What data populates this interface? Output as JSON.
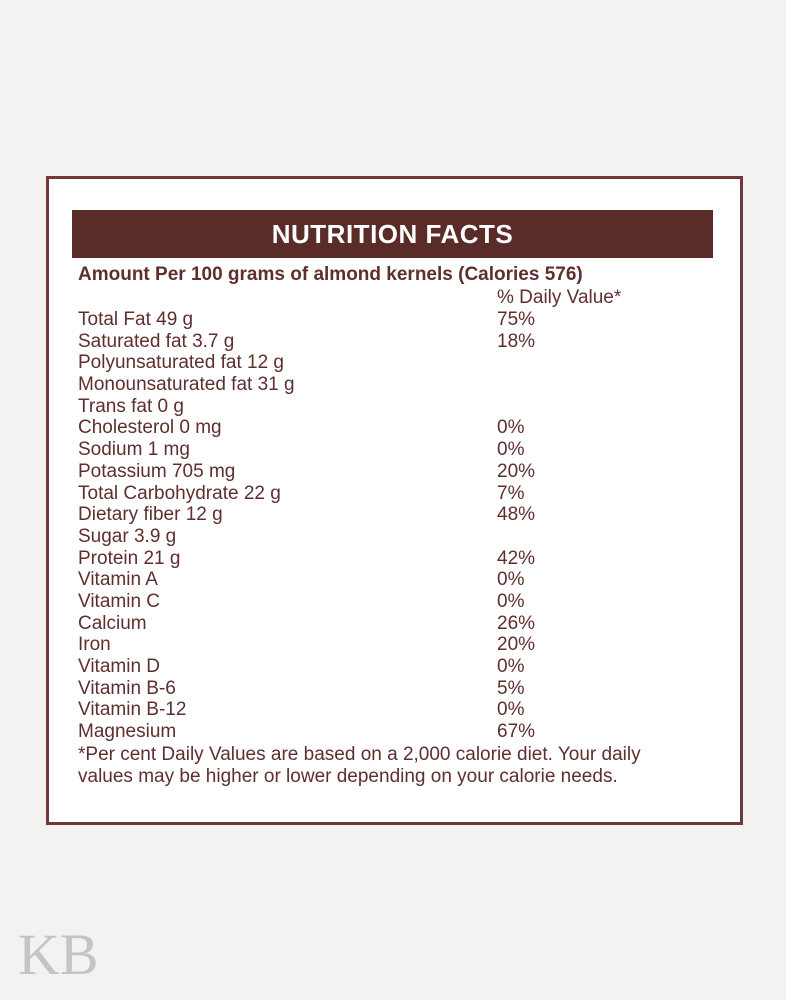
{
  "page": {
    "background_color": "#f3f2f1",
    "watermark_text": "KB"
  },
  "label": {
    "colors": {
      "bar_background": "#592c2a",
      "text": "#5e2f2e",
      "border": "#6e3a39",
      "title_text": "#ffffff"
    },
    "title": "NUTRITION FACTS",
    "amount_line": "Amount Per 100 grams of almond kernels (Calories 576)",
    "daily_value_header": "% Daily Value*",
    "rows": [
      {
        "label": "Total Fat 49 g",
        "dv": "75%"
      },
      {
        "label": "Saturated fat 3.7 g",
        "dv": "18%"
      },
      {
        "label": "Polyunsaturated fat 12 g",
        "dv": ""
      },
      {
        "label": "Monounsaturated fat 31 g",
        "dv": ""
      },
      {
        "label": "Trans fat 0 g",
        "dv": ""
      },
      {
        "label": "Cholesterol 0 mg",
        "dv": "0%"
      },
      {
        "label": "Sodium 1 mg",
        "dv": "0%"
      },
      {
        "label": "Potassium 705 mg",
        "dv": "20%"
      },
      {
        "label": "Total Carbohydrate 22 g",
        "dv": "7%"
      },
      {
        "label": "Dietary fiber 12 g",
        "dv": "48%"
      },
      {
        "label": "Sugar 3.9 g",
        "dv": ""
      },
      {
        "label": "Protein 21 g",
        "dv": "42%"
      },
      {
        "label": "Vitamin A",
        "dv": "0%"
      },
      {
        "label": "Vitamin C",
        "dv": "0%"
      },
      {
        "label": "Calcium",
        "dv": "26%"
      },
      {
        "label": "Iron",
        "dv": "20%"
      },
      {
        "label": "Vitamin D",
        "dv": "0%"
      },
      {
        "label": "Vitamin B-6",
        "dv": "5%"
      },
      {
        "label": "Vitamin B-12",
        "dv": "0%"
      },
      {
        "label": "Magnesium",
        "dv": "67%"
      }
    ],
    "footnote": "*Per cent Daily Values are based on a 2,000 calorie diet. Your daily values may be higher or lower depending on your calorie needs."
  }
}
